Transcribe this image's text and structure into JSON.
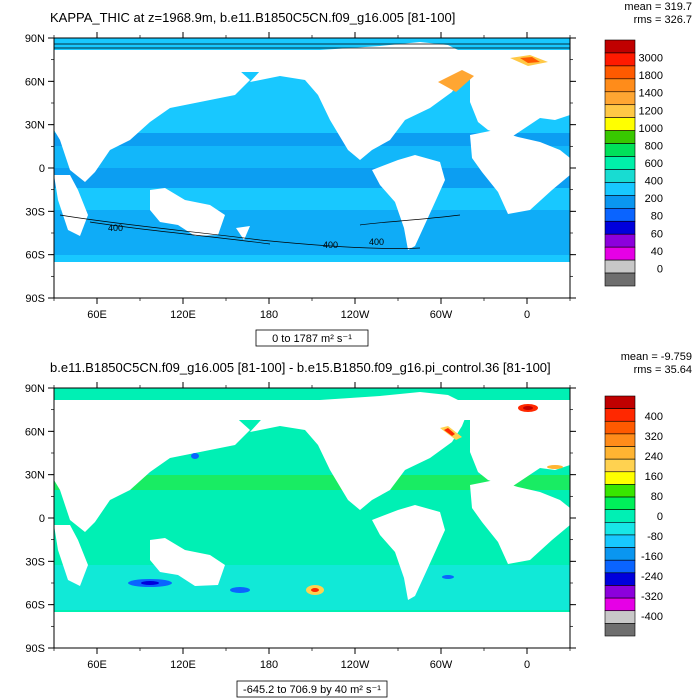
{
  "chart_data": [
    {
      "type": "heatmap",
      "title": "KAPPA_THIC at z=1968.9m, b.e11.B1850C5CN.f09_g16.005 [81-100]",
      "stats": {
        "mean": "mean = 319.7",
        "rms": "rms = 326.7"
      },
      "range_label": "0 to 1787 m² s⁻¹",
      "y_ticks": [
        "90N",
        "60N",
        "30N",
        "0",
        "30S",
        "60S",
        "90S"
      ],
      "x_ticks": [
        "60E",
        "120E",
        "180",
        "120W",
        "60W",
        "0"
      ],
      "colorbar_labels": [
        "3000",
        "1800",
        "1400",
        "1200",
        "1000",
        "800",
        "600",
        "400",
        "200",
        "80",
        "60",
        "40",
        "0"
      ],
      "colors": [
        "#c00000",
        "#ff1a00",
        "#ff5a00",
        "#ff8c1a",
        "#ffa632",
        "#ffc846",
        "#ffff00",
        "#38c800",
        "#00e15a",
        "#00f0aa",
        "#18dcd2",
        "#18c8ff",
        "#0a96f0",
        "#0a64ff",
        "#0000dc",
        "#8c00dc",
        "#e600e6",
        "#c8c8c8",
        "#6e6e6e"
      ],
      "contour_labels": [
        "400",
        "400",
        "400"
      ]
    },
    {
      "type": "heatmap",
      "title": "b.e11.B1850C5CN.f09_g16.005 [81-100] - b.e15.B1850.f09_g16.pi_control.36 [81-100]",
      "stats": {
        "mean": "mean = -9.759",
        "rms": "rms = 35.64"
      },
      "range_label": "-645.2 to 706.9 by 40 m² s⁻¹",
      "y_ticks": [
        "90N",
        "60N",
        "30N",
        "0",
        "30S",
        "60S",
        "90S"
      ],
      "x_ticks": [
        "60E",
        "120E",
        "180",
        "120W",
        "60W",
        "0"
      ],
      "colorbar_labels": [
        "400",
        "320",
        "240",
        "160",
        "80",
        "0",
        "-80",
        "-160",
        "-240",
        "-320",
        "-400"
      ],
      "colors": [
        "#c00000",
        "#ff2800",
        "#ff5a00",
        "#ff8c1a",
        "#ffb432",
        "#ffd250",
        "#ffff00",
        "#38e600",
        "#00f05a",
        "#00f0b4",
        "#18e6e6",
        "#18c8ff",
        "#0a96f0",
        "#0a64ff",
        "#0000dc",
        "#8c00dc",
        "#e600e6",
        "#c8c8c8",
        "#6e6e6e"
      ]
    }
  ]
}
